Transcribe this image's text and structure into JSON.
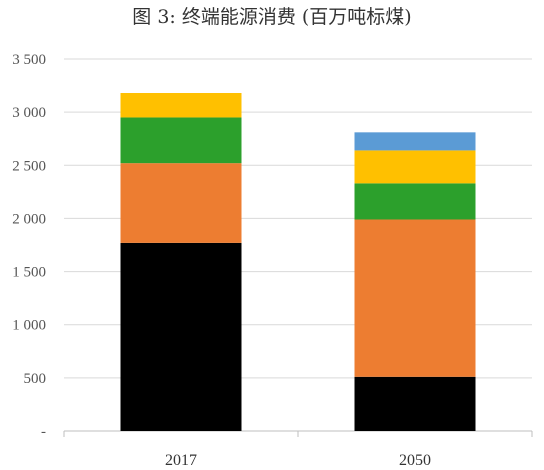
{
  "chart_data": {
    "type": "bar",
    "stacked": true,
    "title": "图 3: 终端能源消费 (百万吨标煤)",
    "xlabel": "",
    "ylabel": "",
    "categories": [
      "2017",
      "2050"
    ],
    "ylim": [
      0,
      3500
    ],
    "yticks": [
      0,
      500,
      1000,
      1500,
      2000,
      2500,
      3000,
      3500
    ],
    "ytick_labels": [
      "-",
      "500",
      "1 000",
      "1 500",
      "2 000",
      "2 500",
      "3 000",
      "3 500"
    ],
    "grid": true,
    "legend": "none",
    "series": [
      {
        "color": "#000000",
        "values": [
          1770,
          510
        ]
      },
      {
        "color": "#ED7D31",
        "values": [
          750,
          1480
        ]
      },
      {
        "color": "#2CA02C",
        "values": [
          430,
          340
        ]
      },
      {
        "color": "#FFC000",
        "values": [
          230,
          310
        ]
      },
      {
        "color": "#5B9BD5",
        "values": [
          0,
          170
        ]
      }
    ]
  }
}
